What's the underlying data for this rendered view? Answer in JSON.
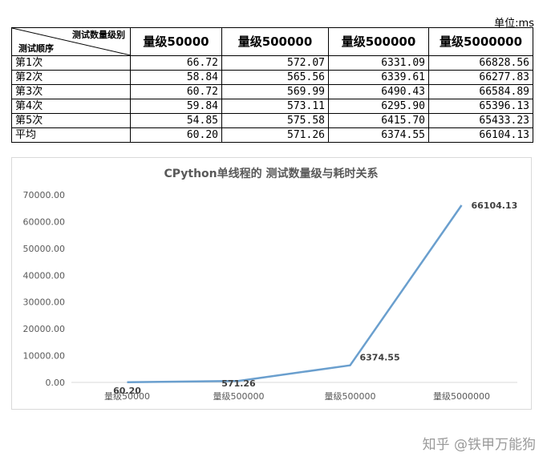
{
  "unit_label": "单位:ms",
  "table": {
    "corner_top": "测试数量级别",
    "corner_bottom": "测试顺序",
    "columns": [
      "量级50000",
      "量级500000",
      "量级500000",
      "量级5000000"
    ],
    "rows": [
      {
        "label": "第1次",
        "values": [
          "66.72",
          "572.07",
          "6331.09",
          "66828.56"
        ]
      },
      {
        "label": "第2次",
        "values": [
          "58.84",
          "565.56",
          "6339.61",
          "66277.83"
        ]
      },
      {
        "label": "第3次",
        "values": [
          "60.72",
          "569.99",
          "6490.43",
          "66584.89"
        ]
      },
      {
        "label": "第4次",
        "values": [
          "59.84",
          "573.11",
          "6295.90",
          "65396.13"
        ]
      },
      {
        "label": "第5次",
        "values": [
          "54.85",
          "575.58",
          "6415.70",
          "65433.23"
        ]
      },
      {
        "label": "平均",
        "values": [
          "60.20",
          "571.26",
          "6374.55",
          "66104.13"
        ]
      }
    ]
  },
  "chart_data": {
    "type": "line",
    "title": "CPython单线程的 测试数量级与耗时关系",
    "categories": [
      "量级50000",
      "量级500000",
      "量级500000",
      "量级5000000"
    ],
    "series": [
      {
        "values": [
          60.2,
          571.26,
          6374.55,
          66104.13
        ],
        "labels": [
          "60.20",
          "571.26",
          "6374.55",
          "66104.13"
        ],
        "color": "#6a9fce"
      }
    ],
    "y_ticks": [
      "0.00",
      "10000.00",
      "20000.00",
      "30000.00",
      "40000.00",
      "50000.00",
      "60000.00",
      "70000.00"
    ],
    "ylim": [
      0,
      70000
    ],
    "grid": false,
    "legend": "none"
  },
  "watermark": "知乎 @铁甲万能狗"
}
